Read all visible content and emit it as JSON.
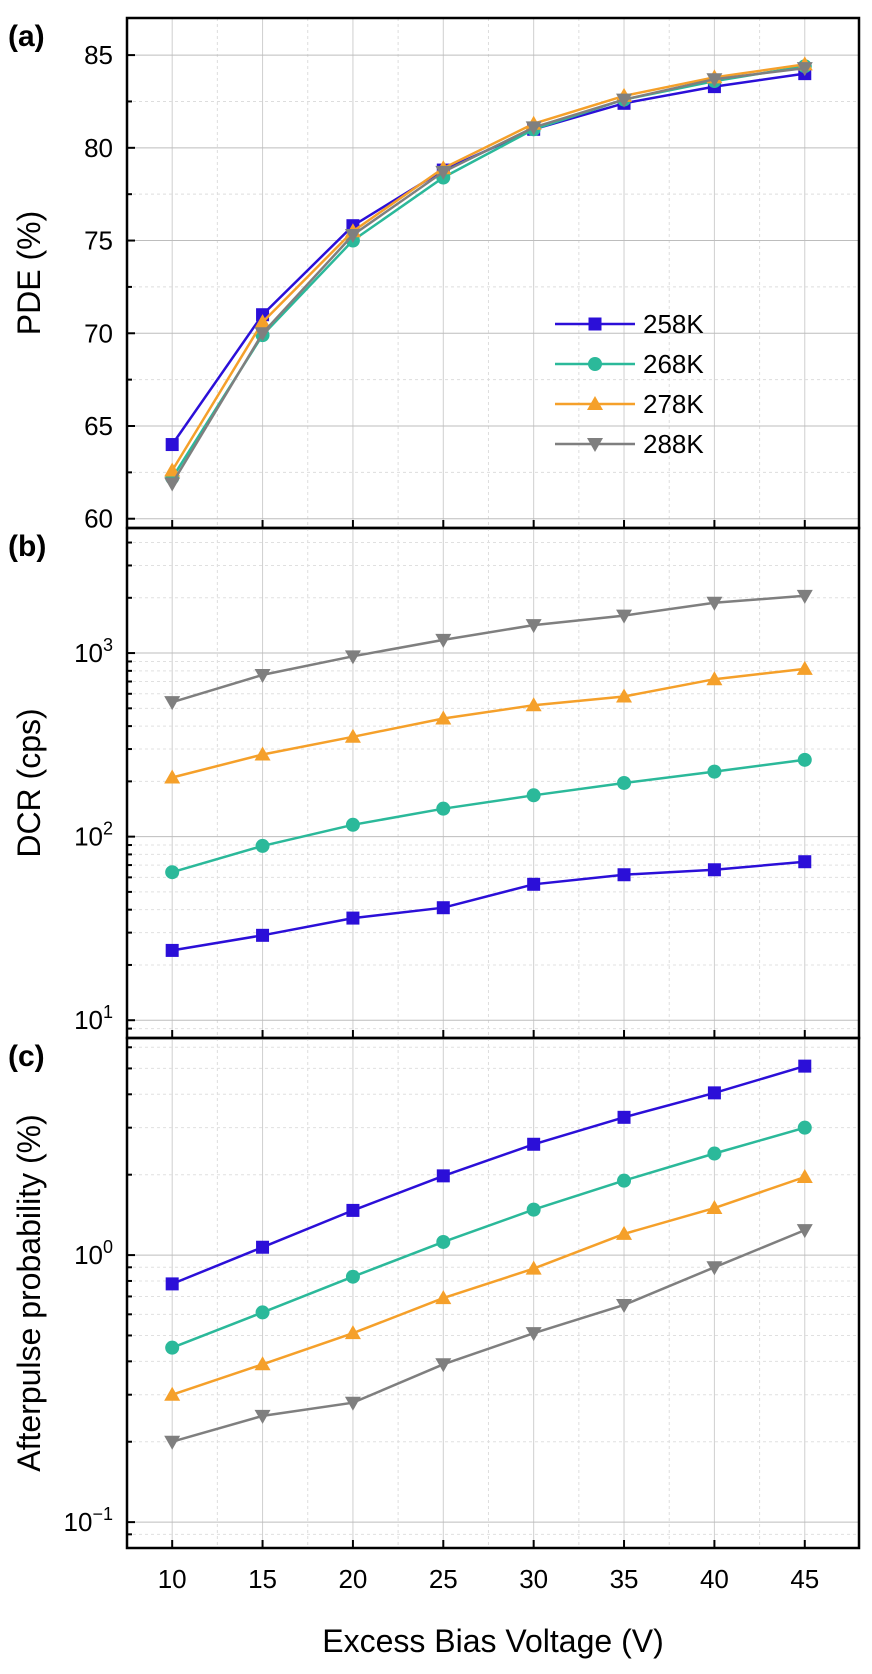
{
  "chart_data": [
    {
      "type": "line",
      "panel_label": "(a)",
      "ylabel": "PDE (%)",
      "yscale": "linear",
      "ylim": [
        59.5,
        87
      ],
      "yticks": [
        {
          "value": 60,
          "label": "60"
        },
        {
          "value": 65,
          "label": "65"
        },
        {
          "value": 70,
          "label": "70"
        },
        {
          "value": 75,
          "label": "75"
        },
        {
          "value": 80,
          "label": "80"
        },
        {
          "value": 85,
          "label": "85"
        }
      ],
      "x": [
        10,
        15,
        20,
        25,
        30,
        35,
        40,
        45
      ],
      "series": [
        {
          "name": "258K",
          "color": "#2b0fd8",
          "marker": "square",
          "values": [
            64.0,
            71.0,
            75.8,
            78.8,
            81.0,
            82.4,
            83.3,
            84.0
          ]
        },
        {
          "name": "268K",
          "color": "#2bb99a",
          "marker": "circle",
          "values": [
            62.2,
            69.9,
            75.0,
            78.4,
            81.0,
            82.6,
            83.6,
            84.4
          ]
        },
        {
          "name": "278K",
          "color": "#f5a02a",
          "marker": "triangle",
          "values": [
            62.6,
            70.6,
            75.5,
            78.9,
            81.3,
            82.8,
            83.8,
            84.5
          ]
        },
        {
          "name": "288K",
          "color": "#7f7f7f",
          "marker": "tri-down",
          "values": [
            61.9,
            70.0,
            75.3,
            78.7,
            81.1,
            82.6,
            83.7,
            84.3
          ]
        }
      ],
      "legend": {
        "position": "bottom-right",
        "entries": [
          "258K",
          "268K",
          "278K",
          "288K"
        ]
      }
    },
    {
      "type": "line",
      "panel_label": "(b)",
      "ylabel": "DCR (cps)",
      "yscale": "log",
      "ylim": [
        8.0,
        4800
      ],
      "yticks": [
        {
          "value": 10,
          "base": "10",
          "exp": "1"
        },
        {
          "value": 100,
          "base": "10",
          "exp": "2"
        },
        {
          "value": 1000,
          "base": "10",
          "exp": "3"
        }
      ],
      "x": [
        10,
        15,
        20,
        25,
        30,
        35,
        40,
        45
      ],
      "series": [
        {
          "name": "258K",
          "color": "#2b0fd8",
          "marker": "square",
          "values": [
            24,
            29,
            36,
            41,
            55,
            62,
            66,
            73
          ]
        },
        {
          "name": "268K",
          "color": "#2bb99a",
          "marker": "circle",
          "values": [
            64,
            89,
            116,
            142,
            168,
            196,
            226,
            262
          ]
        },
        {
          "name": "278K",
          "color": "#f5a02a",
          "marker": "triangle",
          "values": [
            210,
            280,
            350,
            440,
            520,
            580,
            720,
            820
          ]
        },
        {
          "name": "288K",
          "color": "#7f7f7f",
          "marker": "tri-down",
          "values": [
            540,
            760,
            960,
            1180,
            1420,
            1600,
            1880,
            2050
          ]
        }
      ]
    },
    {
      "type": "line",
      "panel_label": "(c)",
      "ylabel": "Afterpulse probability (%)",
      "yscale": "log",
      "ylim": [
        0.08,
        6.5
      ],
      "yticks": [
        {
          "value": 0.1,
          "base": "10",
          "exp": "−1"
        },
        {
          "value": 1,
          "base": "10",
          "exp": "0"
        }
      ],
      "x": [
        10,
        15,
        20,
        25,
        30,
        35,
        40,
        45
      ],
      "xlabel": "Excess Bias Voltage (V)",
      "xticks": [
        "10",
        "15",
        "20",
        "25",
        "30",
        "35",
        "40",
        "45"
      ],
      "series": [
        {
          "name": "258K",
          "color": "#2b0fd8",
          "marker": "square",
          "values": [
            0.78,
            1.07,
            1.47,
            1.98,
            2.6,
            3.28,
            4.05,
            5.1
          ]
        },
        {
          "name": "268K",
          "color": "#2bb99a",
          "marker": "circle",
          "values": [
            0.45,
            0.61,
            0.83,
            1.12,
            1.48,
            1.9,
            2.4,
            3.0
          ]
        },
        {
          "name": "278K",
          "color": "#f5a02a",
          "marker": "triangle",
          "values": [
            0.3,
            0.39,
            0.51,
            0.69,
            0.89,
            1.2,
            1.5,
            1.96
          ]
        },
        {
          "name": "288K",
          "color": "#7f7f7f",
          "marker": "tri-down",
          "values": [
            0.2,
            0.25,
            0.28,
            0.39,
            0.51,
            0.65,
            0.9,
            1.24
          ]
        }
      ]
    }
  ]
}
